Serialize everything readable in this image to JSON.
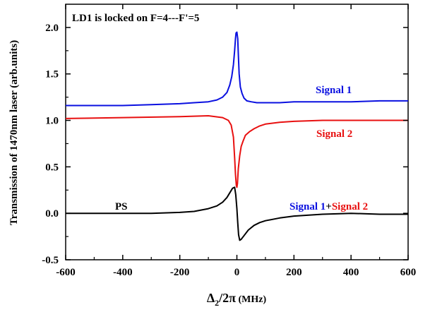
{
  "chart_data": {
    "type": "line",
    "title": "",
    "xlabel_main": "Δ",
    "xlabel_sub": "2",
    "xlabel_rest": "/2π",
    "xlabel_unit": " (MHz)",
    "ylabel": "Transmission of 1470nm laser (arb.units)",
    "xlim": [
      -600,
      600
    ],
    "ylim": [
      -0.5,
      2.25
    ],
    "xticks": [
      -600,
      -400,
      -200,
      0,
      200,
      400,
      600
    ],
    "xtick_labels": [
      "-600",
      "-400",
      "-200",
      "0",
      "200",
      "400",
      "600"
    ],
    "yticks": [
      -0.5,
      0.0,
      0.5,
      1.0,
      1.5,
      2.0
    ],
    "ytick_labels": [
      "-0.5",
      "0.0",
      "0.5",
      "1.0",
      "1.5",
      "2.0"
    ],
    "grid": false,
    "annotations": {
      "lock": "LD1 is locked on F=4---F'=5",
      "ps": "PS",
      "sum_part1": "Signal 1",
      "sum_plus": "+",
      "sum_part2": "Signal 2"
    },
    "series": [
      {
        "name": "Signal 1",
        "color": "#0a10e0",
        "x": [
          -600,
          -500,
          -400,
          -300,
          -200,
          -150,
          -100,
          -70,
          -50,
          -35,
          -25,
          -18,
          -12,
          -8,
          -5,
          -3,
          0,
          3,
          5,
          8,
          12,
          18,
          25,
          35,
          50,
          70,
          100,
          150,
          200,
          300,
          400,
          500,
          600
        ],
        "y": [
          1.16,
          1.16,
          1.16,
          1.17,
          1.18,
          1.19,
          1.2,
          1.22,
          1.25,
          1.3,
          1.38,
          1.47,
          1.6,
          1.75,
          1.88,
          1.94,
          1.95,
          1.88,
          1.72,
          1.5,
          1.36,
          1.29,
          1.24,
          1.21,
          1.2,
          1.19,
          1.19,
          1.19,
          1.2,
          1.2,
          1.2,
          1.21,
          1.21
        ]
      },
      {
        "name": "Signal 2",
        "color": "#e81010",
        "x": [
          -600,
          -400,
          -200,
          -100,
          -50,
          -30,
          -20,
          -12,
          -8,
          -5,
          -2,
          0,
          2,
          5,
          10,
          15,
          22,
          30,
          45,
          60,
          80,
          100,
          150,
          200,
          300,
          400,
          500,
          600
        ],
        "y": [
          1.02,
          1.03,
          1.04,
          1.05,
          1.03,
          1.0,
          0.95,
          0.82,
          0.6,
          0.42,
          0.3,
          0.28,
          0.32,
          0.48,
          0.62,
          0.72,
          0.78,
          0.84,
          0.88,
          0.91,
          0.94,
          0.96,
          0.98,
          0.99,
          1.0,
          1.0,
          1.0,
          1.0
        ]
      },
      {
        "name": "Signal 1+Signal 2",
        "color": "#000000",
        "x": [
          -600,
          -500,
          -400,
          -300,
          -200,
          -150,
          -100,
          -70,
          -50,
          -35,
          -25,
          -15,
          -8,
          -4,
          0,
          3,
          6,
          10,
          15,
          25,
          40,
          60,
          80,
          100,
          150,
          200,
          300,
          400,
          500,
          600
        ],
        "y": [
          0.0,
          0.0,
          0.0,
          0.0,
          0.01,
          0.02,
          0.05,
          0.08,
          0.12,
          0.17,
          0.22,
          0.27,
          0.28,
          0.2,
          0.05,
          -0.1,
          -0.23,
          -0.29,
          -0.28,
          -0.24,
          -0.18,
          -0.13,
          -0.1,
          -0.08,
          -0.05,
          -0.03,
          -0.01,
          0.0,
          -0.01,
          -0.01
        ]
      }
    ]
  }
}
